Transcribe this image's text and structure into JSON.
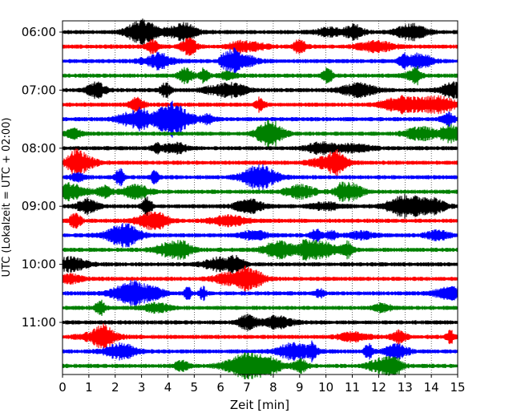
{
  "chart_data": {
    "type": "line",
    "title": "",
    "xlabel": "Zeit  [min]",
    "ylabel": "UTC (Lokalzeit = UTC + 02:00)",
    "xlim": [
      0,
      15
    ],
    "x_ticks": [
      0,
      1,
      2,
      3,
      4,
      5,
      6,
      7,
      8,
      9,
      10,
      11,
      12,
      13,
      14,
      15
    ],
    "x_grid": true,
    "y_tick_labels": [
      "06:00",
      "07:00",
      "08:00",
      "09:00",
      "10:00",
      "11:00"
    ],
    "trace_start_times": [
      "06:00",
      "06:15",
      "06:30",
      "06:45",
      "07:00",
      "07:15",
      "07:30",
      "07:45",
      "08:00",
      "08:15",
      "08:30",
      "08:45",
      "09:00",
      "09:15",
      "09:30",
      "09:45",
      "10:00",
      "10:15",
      "10:30",
      "10:45",
      "11:00",
      "11:15",
      "11:30",
      "11:45"
    ],
    "trace_colors": [
      "#000000",
      "#ff0000",
      "#0000ff",
      "#008000"
    ],
    "trace_amplitude_relative": 0.12
  }
}
